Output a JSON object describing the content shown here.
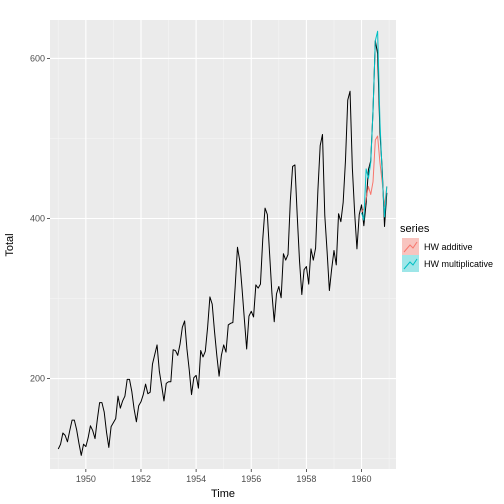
{
  "chart_data": {
    "type": "line",
    "xlabel": "Time",
    "ylabel": "Total",
    "xlim": [
      1948.7,
      1961.25
    ],
    "ylim": [
      87,
      648
    ],
    "x_ticks": [
      1950,
      1952,
      1954,
      1956,
      1958,
      1960
    ],
    "x_tick_labels": [
      "1950",
      "1952",
      "1954",
      "1956",
      "1958",
      "1960"
    ],
    "y_ticks": [
      200,
      400,
      600
    ],
    "y_tick_labels": [
      "200",
      "400",
      "600"
    ],
    "grid": true,
    "legend_position": "right",
    "legend_title": "series",
    "observed": {
      "start": 1949.0,
      "step": 0.08333333,
      "values": [
        112,
        118,
        132,
        129,
        121,
        135,
        148,
        148,
        136,
        119,
        104,
        118,
        115,
        126,
        141,
        135,
        125,
        149,
        170,
        170,
        158,
        133,
        114,
        140,
        145,
        150,
        178,
        163,
        172,
        178,
        199,
        199,
        184,
        162,
        146,
        166,
        171,
        180,
        193,
        181,
        183,
        218,
        230,
        242,
        209,
        191,
        172,
        194,
        196,
        196,
        236,
        235,
        229,
        243,
        264,
        272,
        237,
        211,
        180,
        201,
        204,
        188,
        235,
        227,
        234,
        264,
        302,
        293,
        259,
        229,
        203,
        229,
        242,
        233,
        267,
        269,
        270,
        315,
        364,
        347,
        312,
        274,
        237,
        278,
        284,
        277,
        317,
        313,
        318,
        374,
        413,
        405,
        355,
        306,
        271,
        306,
        315,
        301,
        356,
        348,
        355,
        422,
        465,
        467,
        404,
        347,
        305,
        336,
        340,
        318,
        362,
        348,
        363,
        435,
        491,
        505,
        404,
        359,
        310,
        337,
        360,
        342,
        406,
        396,
        420,
        472,
        548,
        559,
        463,
        407,
        362,
        405,
        417,
        391,
        419,
        461,
        472,
        535,
        622,
        606,
        508,
        461,
        390,
        432
      ]
    },
    "series": [
      {
        "name": "HW additive",
        "color": "#F8766D",
        "fill": "#F8C4BF",
        "x": [
          1960.0,
          1960.0833,
          1960.1667,
          1960.25,
          1960.3333,
          1960.4167,
          1960.5,
          1960.5833,
          1960.6667,
          1960.75,
          1960.8333,
          1960.9167
        ],
        "values": [
          408,
          412,
          425,
          440,
          430,
          446,
          498,
          503,
          470,
          445,
          415,
          440
        ]
      },
      {
        "name": "HW multiplicative",
        "color": "#00BFC4",
        "fill": "#9EE6E8",
        "x": [
          1960.0,
          1960.0833,
          1960.1667,
          1960.25,
          1960.3333,
          1960.4167,
          1960.5,
          1960.5833,
          1960.6667,
          1960.75,
          1960.8333,
          1960.9167
        ],
        "values": [
          407,
          398,
          462,
          450,
          470,
          535,
          622,
          634,
          522,
          455,
          402,
          440
        ]
      }
    ]
  }
}
